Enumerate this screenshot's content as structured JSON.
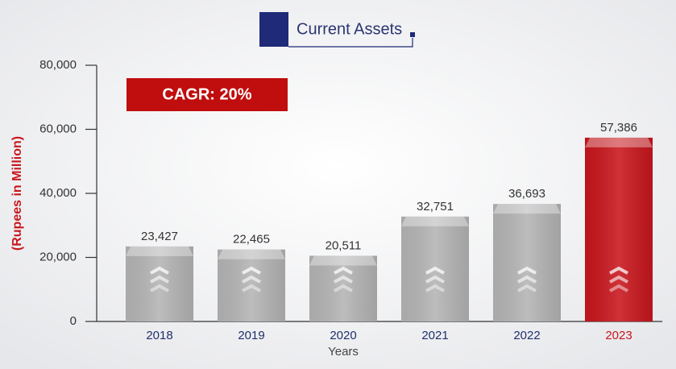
{
  "chart_data": {
    "type": "bar",
    "title": "Current Assets",
    "annotation": "CAGR: 20%",
    "y_label": "(Rupees in Million)",
    "x_label": "Years",
    "categories": [
      "2018",
      "2019",
      "2020",
      "2021",
      "2022",
      "2023"
    ],
    "values": [
      23427,
      22465,
      20511,
      32751,
      36693,
      57386
    ],
    "value_labels": [
      "23,427",
      "22,465",
      "20,511",
      "32,751",
      "36,693",
      "57,386"
    ],
    "colors": [
      "#b4b4b4",
      "#b4b4b4",
      "#b4b4b4",
      "#b4b4b4",
      "#b4b4b4",
      "#c8161d"
    ],
    "category_colors": [
      "#1f2f6b",
      "#1f2f6b",
      "#1f2f6b",
      "#1f2f6b",
      "#1f2f6b",
      "#c8161d"
    ],
    "ylim": [
      0,
      80000
    ],
    "yticks": [
      {
        "value": 0,
        "label": "0"
      },
      {
        "value": 20000,
        "label": "20,000"
      },
      {
        "value": 40000,
        "label": "40,000"
      },
      {
        "value": 60000,
        "label": "60,000"
      },
      {
        "value": 80000,
        "label": "80,000"
      }
    ]
  }
}
